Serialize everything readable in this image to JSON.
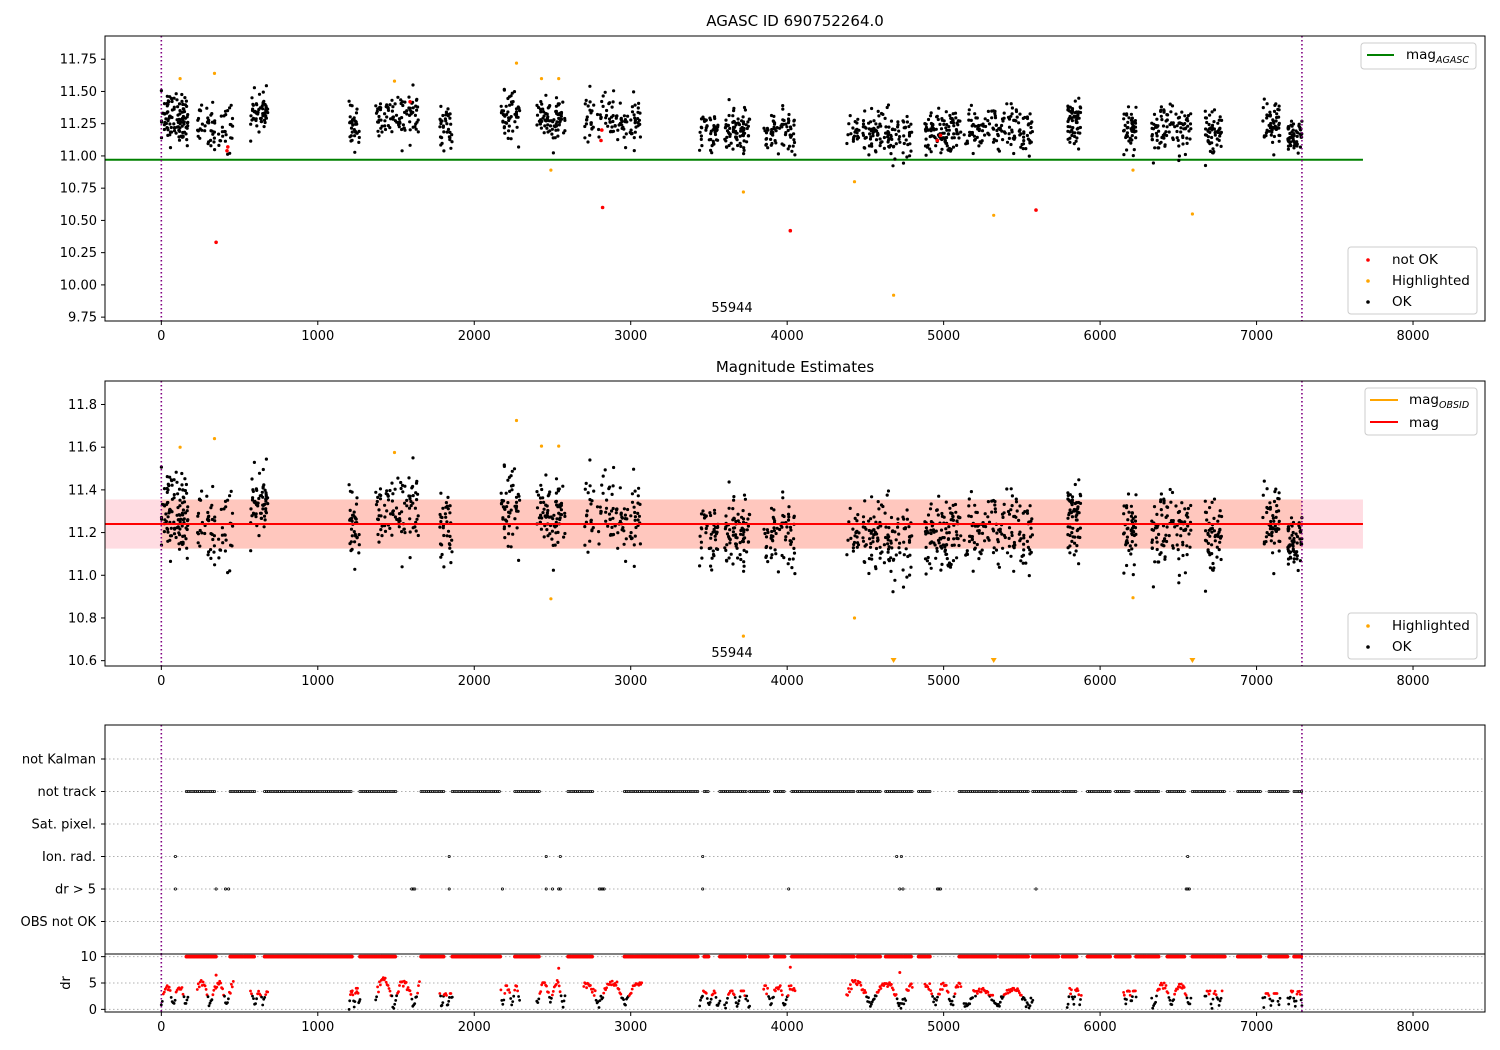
{
  "figure": {
    "colors": {
      "ok": "#000000",
      "not_ok": "#ff0000",
      "highlighted": "#ffa500",
      "mag_agasc": "#008000",
      "mag": "#ff0000",
      "mag_obsid": "#ffa500",
      "band_inner": "#ffa07a",
      "band_outer": "#ffc0cb",
      "boundary": "#800080",
      "grid": "#b0b0b0"
    }
  },
  "chart_data": [
    {
      "id": "panel-agasc",
      "type": "scatter",
      "title": "AGASC ID 690752264.0",
      "xlim": [
        -360,
        8460
      ],
      "ylim": [
        9.72,
        11.93
      ],
      "xticks": [
        "0",
        "1000",
        "2000",
        "3000",
        "4000",
        "5000",
        "6000",
        "7000",
        "8000"
      ],
      "yticks": [
        "9.75",
        "10.00",
        "10.25",
        "10.50",
        "10.75",
        "11.00",
        "11.25",
        "11.50",
        "11.75"
      ],
      "boundaries": [
        0,
        7290
      ],
      "annotation": {
        "text": "55944",
        "x": 3640,
        "y": 9.8
      },
      "reference_line": {
        "label": "mag",
        "sub": "AGASC",
        "value": 10.97,
        "x0": -360,
        "x1": 7680
      },
      "legend_top": {
        "placement": "upper right"
      },
      "legend_bottom": {
        "placement": "lower right",
        "entries": [
          "not OK",
          "Highlighted",
          "OK"
        ]
      },
      "segments": [
        {
          "x0": 0,
          "x1": 170,
          "mean": 11.3,
          "n": 110,
          "spread": 0.13
        },
        {
          "x0": 230,
          "x1": 460,
          "mean": 11.22,
          "n": 65,
          "spread": 0.12
        },
        {
          "x0": 570,
          "x1": 680,
          "mean": 11.35,
          "n": 60,
          "spread": 0.09
        },
        {
          "x0": 1200,
          "x1": 1270,
          "mean": 11.22,
          "n": 35,
          "spread": 0.1
        },
        {
          "x0": 1370,
          "x1": 1650,
          "mean": 11.3,
          "n": 95,
          "spread": 0.12
        },
        {
          "x0": 1780,
          "x1": 1860,
          "mean": 11.22,
          "n": 35,
          "spread": 0.1
        },
        {
          "x0": 2170,
          "x1": 2290,
          "mean": 11.3,
          "n": 55,
          "spread": 0.12
        },
        {
          "x0": 2400,
          "x1": 2580,
          "mean": 11.28,
          "n": 80,
          "spread": 0.12
        },
        {
          "x0": 2700,
          "x1": 3070,
          "mean": 11.28,
          "n": 110,
          "spread": 0.12
        },
        {
          "x0": 3440,
          "x1": 3570,
          "mean": 11.18,
          "n": 45,
          "spread": 0.1
        },
        {
          "x0": 3600,
          "x1": 3760,
          "mean": 11.2,
          "n": 80,
          "spread": 0.1
        },
        {
          "x0": 3850,
          "x1": 4050,
          "mean": 11.18,
          "n": 70,
          "spread": 0.11
        },
        {
          "x0": 4380,
          "x1": 4800,
          "mean": 11.18,
          "n": 140,
          "spread": 0.12
        },
        {
          "x0": 4880,
          "x1": 5110,
          "mean": 11.17,
          "n": 110,
          "spread": 0.12
        },
        {
          "x0": 5130,
          "x1": 5570,
          "mean": 11.2,
          "n": 140,
          "spread": 0.12
        },
        {
          "x0": 5790,
          "x1": 5880,
          "mean": 11.27,
          "n": 60,
          "spread": 0.11
        },
        {
          "x0": 6150,
          "x1": 6230,
          "mean": 11.2,
          "n": 50,
          "spread": 0.11
        },
        {
          "x0": 6330,
          "x1": 6580,
          "mean": 11.2,
          "n": 100,
          "spread": 0.12
        },
        {
          "x0": 6670,
          "x1": 6780,
          "mean": 11.2,
          "n": 55,
          "spread": 0.11
        },
        {
          "x0": 7040,
          "x1": 7150,
          "mean": 11.25,
          "n": 55,
          "spread": 0.11
        },
        {
          "x0": 7200,
          "x1": 7290,
          "mean": 11.15,
          "n": 60,
          "spread": 0.08
        }
      ],
      "highlighted_points": [
        {
          "x": 120,
          "y": 11.6
        },
        {
          "x": 340,
          "y": 11.64
        },
        {
          "x": 1490,
          "y": 11.58
        },
        {
          "x": 2270,
          "y": 11.72
        },
        {
          "x": 2430,
          "y": 11.6
        },
        {
          "x": 2540,
          "y": 11.6
        },
        {
          "x": 2490,
          "y": 10.89
        },
        {
          "x": 3720,
          "y": 10.72
        },
        {
          "x": 4430,
          "y": 10.8
        },
        {
          "x": 4680,
          "y": 9.92
        },
        {
          "x": 5320,
          "y": 10.54
        },
        {
          "x": 6210,
          "y": 10.89
        },
        {
          "x": 6590,
          "y": 10.55
        }
      ],
      "not_ok_points": [
        {
          "x": 350,
          "y": 10.33
        },
        {
          "x": 420,
          "y": 11.04
        },
        {
          "x": 425,
          "y": 11.07
        },
        {
          "x": 2810,
          "y": 11.12
        },
        {
          "x": 2815,
          "y": 11.2
        },
        {
          "x": 2820,
          "y": 10.6
        },
        {
          "x": 4020,
          "y": 10.42
        },
        {
          "x": 4960,
          "y": 11.12
        },
        {
          "x": 4980,
          "y": 11.16
        },
        {
          "x": 5590,
          "y": 10.58
        },
        {
          "x": 1590,
          "y": 11.42
        }
      ]
    },
    {
      "id": "panel-magnitude",
      "type": "scatter",
      "title": "Magnitude Estimates",
      "xlim": [
        -360,
        8460
      ],
      "ylim": [
        10.575,
        11.91
      ],
      "xticks": [
        "0",
        "1000",
        "2000",
        "3000",
        "4000",
        "5000",
        "6000",
        "7000",
        "8000"
      ],
      "yticks": [
        "10.6",
        "10.8",
        "11.0",
        "11.2",
        "11.4",
        "11.6",
        "11.8"
      ],
      "boundaries": [
        0,
        7290
      ],
      "annotation": {
        "text": "55944",
        "x": 3640,
        "y": 10.63
      },
      "mag_line": {
        "label": "mag",
        "value": 11.24,
        "x0": -360,
        "x1": 7680
      },
      "mag_band": {
        "lo": 11.125,
        "hi": 11.355,
        "x0": -360,
        "x1": 7680
      },
      "mag_obsid": {
        "label": "mag",
        "sub": "OBSID",
        "value": 11.23
      },
      "legend_top": {
        "placement": "upper right"
      },
      "legend_bottom": {
        "placement": "lower right",
        "entries": [
          "Highlighted",
          "OK"
        ]
      },
      "segments": [
        {
          "x0": 0,
          "x1": 170,
          "mean": 11.3,
          "n": 110,
          "spread": 0.13
        },
        {
          "x0": 230,
          "x1": 460,
          "mean": 11.22,
          "n": 65,
          "spread": 0.12
        },
        {
          "x0": 570,
          "x1": 680,
          "mean": 11.35,
          "n": 60,
          "spread": 0.09
        },
        {
          "x0": 1200,
          "x1": 1270,
          "mean": 11.22,
          "n": 35,
          "spread": 0.1
        },
        {
          "x0": 1370,
          "x1": 1650,
          "mean": 11.3,
          "n": 95,
          "spread": 0.12
        },
        {
          "x0": 1780,
          "x1": 1860,
          "mean": 11.22,
          "n": 35,
          "spread": 0.1
        },
        {
          "x0": 2170,
          "x1": 2290,
          "mean": 11.3,
          "n": 55,
          "spread": 0.12
        },
        {
          "x0": 2400,
          "x1": 2580,
          "mean": 11.28,
          "n": 80,
          "spread": 0.12
        },
        {
          "x0": 2700,
          "x1": 3070,
          "mean": 11.28,
          "n": 110,
          "spread": 0.12
        },
        {
          "x0": 3440,
          "x1": 3570,
          "mean": 11.18,
          "n": 45,
          "spread": 0.1
        },
        {
          "x0": 3600,
          "x1": 3760,
          "mean": 11.2,
          "n": 80,
          "spread": 0.1
        },
        {
          "x0": 3850,
          "x1": 4050,
          "mean": 11.18,
          "n": 70,
          "spread": 0.11
        },
        {
          "x0": 4380,
          "x1": 4800,
          "mean": 11.18,
          "n": 140,
          "spread": 0.12
        },
        {
          "x0": 4880,
          "x1": 5110,
          "mean": 11.17,
          "n": 110,
          "spread": 0.12
        },
        {
          "x0": 5130,
          "x1": 5570,
          "mean": 11.2,
          "n": 140,
          "spread": 0.12
        },
        {
          "x0": 5790,
          "x1": 5880,
          "mean": 11.27,
          "n": 60,
          "spread": 0.11
        },
        {
          "x0": 6150,
          "x1": 6230,
          "mean": 11.2,
          "n": 50,
          "spread": 0.11
        },
        {
          "x0": 6330,
          "x1": 6580,
          "mean": 11.2,
          "n": 100,
          "spread": 0.12
        },
        {
          "x0": 6670,
          "x1": 6780,
          "mean": 11.2,
          "n": 55,
          "spread": 0.11
        },
        {
          "x0": 7040,
          "x1": 7150,
          "mean": 11.25,
          "n": 55,
          "spread": 0.11
        },
        {
          "x0": 7200,
          "x1": 7290,
          "mean": 11.15,
          "n": 60,
          "spread": 0.08
        }
      ],
      "highlighted_points": [
        {
          "x": 120,
          "y": 11.6
        },
        {
          "x": 340,
          "y": 11.64
        },
        {
          "x": 1490,
          "y": 11.575
        },
        {
          "x": 2270,
          "y": 11.725
        },
        {
          "x": 2430,
          "y": 11.605
        },
        {
          "x": 2540,
          "y": 11.605
        },
        {
          "x": 2490,
          "y": 10.89
        },
        {
          "x": 3720,
          "y": 10.715
        },
        {
          "x": 4430,
          "y": 10.8
        },
        {
          "x": 6210,
          "y": 10.895
        }
      ],
      "offscale_markers": [
        {
          "x": 4680
        },
        {
          "x": 5320
        },
        {
          "x": 6590
        }
      ]
    },
    {
      "id": "panel-flags",
      "type": "scatter",
      "xlim": [
        -360,
        8460
      ],
      "categories": [
        "not Kalman",
        "not track",
        "Sat. pixel.",
        "Ion. rad.",
        "dr > 5",
        "OBS not OK"
      ],
      "boundaries": [
        0,
        7290
      ],
      "not_track_ranges": [
        [
          160,
          350
        ],
        [
          440,
          600
        ],
        [
          660,
          1220
        ],
        [
          1270,
          1500
        ],
        [
          1660,
          1810
        ],
        [
          1860,
          2170
        ],
        [
          2260,
          2420
        ],
        [
          2600,
          2760
        ],
        [
          2960,
          3430
        ],
        [
          3470,
          3500
        ],
        [
          3570,
          3740
        ],
        [
          3760,
          3880
        ],
        [
          3920,
          3990
        ],
        [
          4030,
          4430
        ],
        [
          4450,
          4600
        ],
        [
          4630,
          4800
        ],
        [
          4840,
          4920
        ],
        [
          5100,
          5340
        ],
        [
          5360,
          5540
        ],
        [
          5570,
          5740
        ],
        [
          5760,
          5850
        ],
        [
          5920,
          6070
        ],
        [
          6100,
          6190
        ],
        [
          6230,
          6380
        ],
        [
          6430,
          6540
        ],
        [
          6590,
          6800
        ],
        [
          6880,
          7030
        ],
        [
          7080,
          7200
        ],
        [
          7240,
          7290
        ]
      ],
      "ion_rad_points": [
        90,
        1840,
        2460,
        2550,
        3460,
        4700,
        4730,
        6560
      ],
      "dr5_points": [
        90,
        350,
        410,
        430,
        1600,
        1610,
        1620,
        1840,
        2180,
        2460,
        2500,
        2540,
        2550,
        2800,
        2810,
        2820,
        2830,
        3460,
        4010,
        4720,
        4740,
        4960,
        4970,
        4980,
        5590,
        6550,
        6560,
        6570
      ]
    },
    {
      "id": "panel-dr",
      "type": "scatter",
      "ylabel": "dr",
      "xlim": [
        -360,
        8460
      ],
      "ylim": [
        -0.5,
        10.5
      ],
      "xticks": [
        "0",
        "1000",
        "2000",
        "3000",
        "4000",
        "5000",
        "6000",
        "7000",
        "8000"
      ],
      "yticks": [
        "0",
        "5",
        "10"
      ],
      "boundaries": [
        0,
        7290
      ],
      "capped_value": 10,
      "segments": [
        {
          "x0": 0,
          "x1": 170,
          "peak": 4.5
        },
        {
          "x0": 230,
          "x1": 460,
          "peak": 5.5
        },
        {
          "x0": 570,
          "x1": 680,
          "peak": 3.5
        },
        {
          "x0": 1200,
          "x1": 1270,
          "peak": 4.0
        },
        {
          "x0": 1370,
          "x1": 1650,
          "peak": 6.0
        },
        {
          "x0": 1780,
          "x1": 1860,
          "peak": 3.0
        },
        {
          "x0": 2170,
          "x1": 2290,
          "peak": 4.5
        },
        {
          "x0": 2400,
          "x1": 2580,
          "peak": 5.5
        },
        {
          "x0": 2700,
          "x1": 3070,
          "peak": 5.5
        },
        {
          "x0": 3440,
          "x1": 3570,
          "peak": 3.5
        },
        {
          "x0": 3600,
          "x1": 3760,
          "peak": 3.5
        },
        {
          "x0": 3850,
          "x1": 4050,
          "peak": 4.5
        },
        {
          "x0": 4380,
          "x1": 4800,
          "peak": 5.5
        },
        {
          "x0": 4880,
          "x1": 5110,
          "peak": 5.0
        },
        {
          "x0": 5130,
          "x1": 5570,
          "peak": 4.0
        },
        {
          "x0": 5790,
          "x1": 5880,
          "peak": 4.0
        },
        {
          "x0": 6150,
          "x1": 6230,
          "peak": 3.5
        },
        {
          "x0": 6330,
          "x1": 6580,
          "peak": 5.0
        },
        {
          "x0": 6670,
          "x1": 6780,
          "peak": 3.5
        },
        {
          "x0": 7040,
          "x1": 7150,
          "peak": 3.0
        },
        {
          "x0": 7200,
          "x1": 7290,
          "peak": 3.5
        }
      ],
      "capped_ranges": [
        [
          160,
          350
        ],
        [
          440,
          600
        ],
        [
          660,
          1220
        ],
        [
          1270,
          1500
        ],
        [
          1660,
          1810
        ],
        [
          1860,
          2170
        ],
        [
          2260,
          2420
        ],
        [
          2600,
          2760
        ],
        [
          2960,
          3430
        ],
        [
          3470,
          3500
        ],
        [
          3570,
          3740
        ],
        [
          3760,
          3880
        ],
        [
          3920,
          3990
        ],
        [
          4030,
          4430
        ],
        [
          4450,
          4600
        ],
        [
          4630,
          4800
        ],
        [
          4840,
          4920
        ],
        [
          5100,
          5340
        ],
        [
          5360,
          5540
        ],
        [
          5570,
          5740
        ],
        [
          5760,
          5850
        ],
        [
          5920,
          6070
        ],
        [
          6100,
          6190
        ],
        [
          6230,
          6380
        ],
        [
          6430,
          6540
        ],
        [
          6590,
          6800
        ],
        [
          6880,
          7030
        ],
        [
          7080,
          7200
        ],
        [
          7240,
          7290
        ]
      ],
      "isolated_high_points": [
        {
          "x": 2540,
          "y": 7.8
        },
        {
          "x": 4020,
          "y": 8.0
        },
        {
          "x": 4720,
          "y": 7.0
        },
        {
          "x": 350,
          "y": 6.5
        }
      ]
    }
  ]
}
